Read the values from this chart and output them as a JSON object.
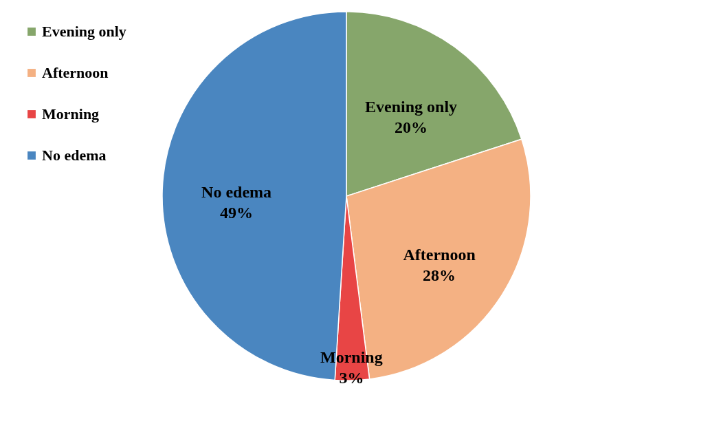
{
  "chart_data": {
    "type": "pie",
    "categories": [
      "Evening only",
      "Afternoon",
      "Morning",
      "No edema"
    ],
    "values": [
      20,
      28,
      3,
      49
    ],
    "colors": [
      "#86a66b",
      "#f4b183",
      "#e84545",
      "#4a86c0"
    ],
    "value_labels": [
      "20%",
      "28%",
      "3%",
      "49%"
    ],
    "legend": "left"
  }
}
